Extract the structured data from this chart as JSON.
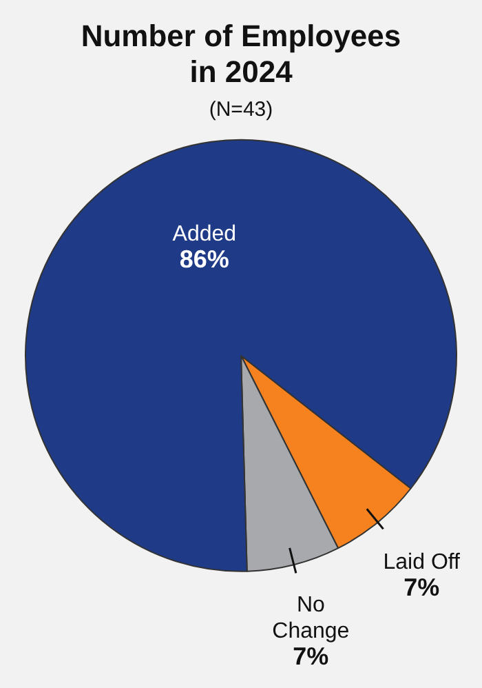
{
  "chart_data": {
    "type": "pie",
    "title": "Number of Employees in 2024",
    "subtitle": "(N=43)",
    "categories": [
      "Laid Off",
      "No Change",
      "Added"
    ],
    "values": [
      7,
      7,
      86
    ],
    "colors": [
      "#f5821f",
      "#a7a9ac",
      "#1f3a87"
    ],
    "value_labels": [
      "7%",
      "7%",
      "86%"
    ],
    "legend": false
  }
}
